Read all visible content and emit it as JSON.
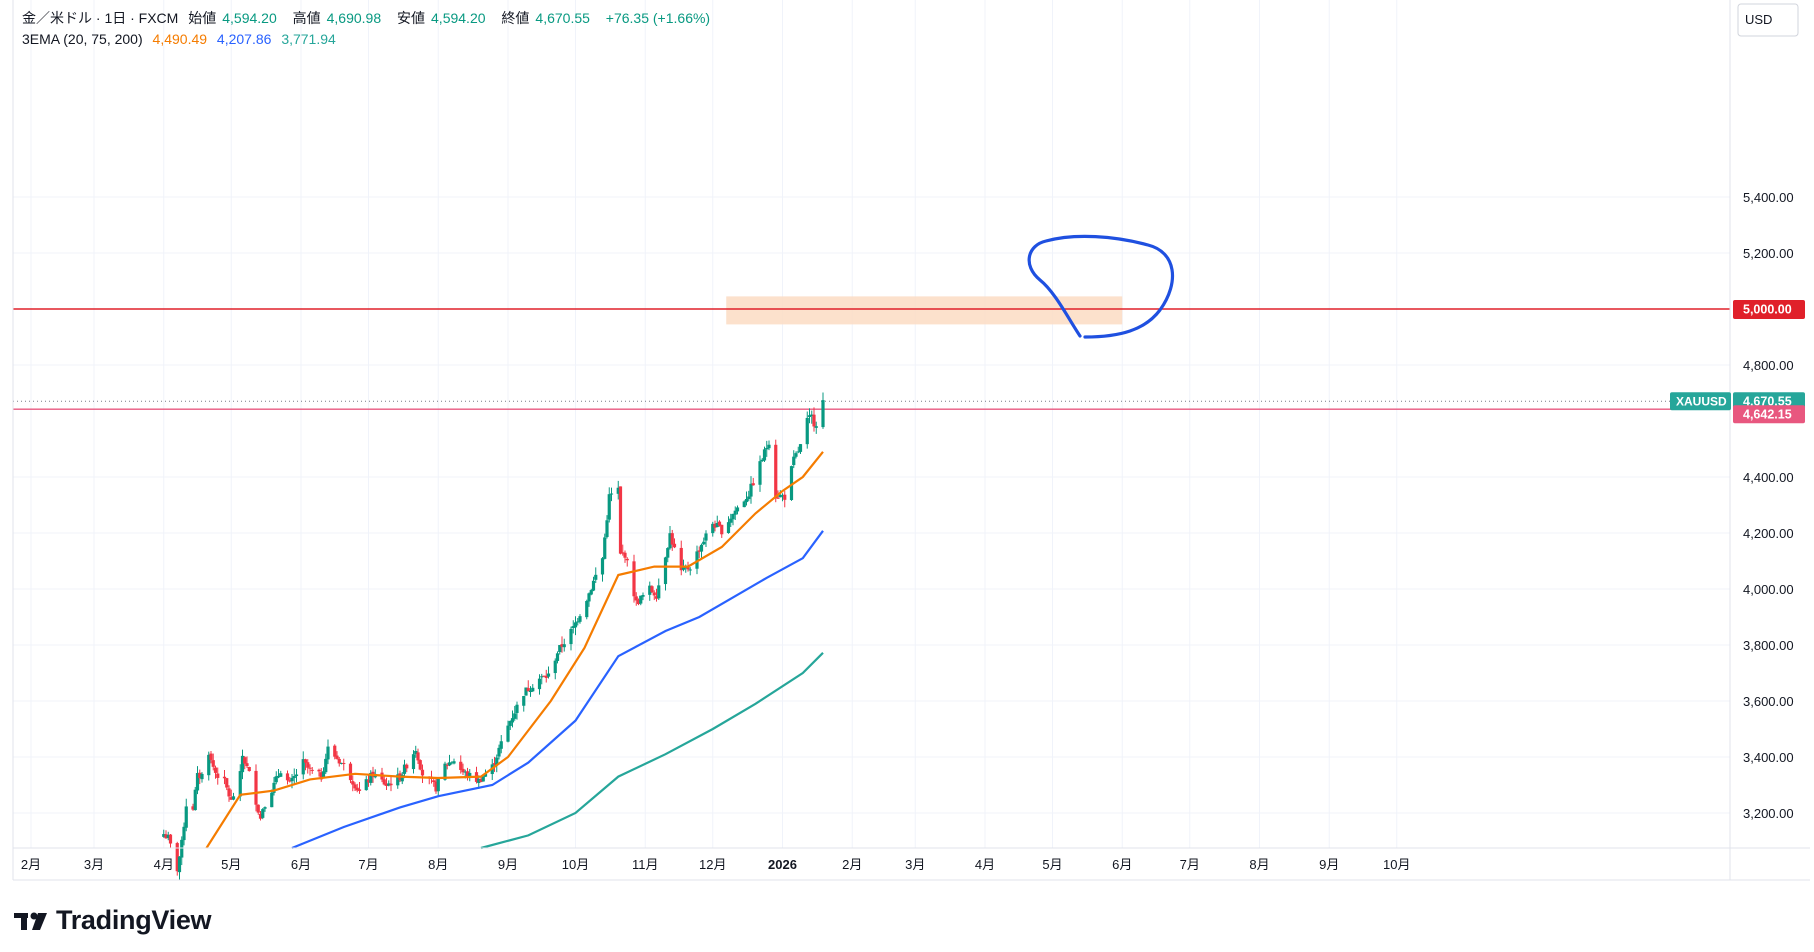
{
  "header": {
    "symbol": "金／米ドル · 1日 · FXCM",
    "open_label": "始値",
    "open": "4,594.20",
    "high_label": "高値",
    "high": "4,690.98",
    "low_label": "安値",
    "low": "4,594.20",
    "close_label": "終値",
    "close": "4,670.55",
    "change": "+76.35 (+1.66%)",
    "ema_label": "3EMA (20, 75, 200)",
    "ema_fast": "4,490.49",
    "ema_mid": "4,207.86",
    "ema_slow": "3,771.94"
  },
  "currency": "USD",
  "footer": {
    "brand": "TradingView"
  },
  "colors": {
    "up": "#089981",
    "down": "#f23645",
    "ema_fast": "#f57c00",
    "ema_mid": "#2962ff",
    "ema_slow": "#26a69a",
    "resistance": "#e0202a",
    "pink_line": "#e8577f",
    "zone": "#fcdcc3",
    "drawing": "#1f50e0",
    "badge_green": "#26a69a"
  },
  "chart_data": {
    "type": "candlestick",
    "y_ticks": [
      "3,200.00",
      "3,400.00",
      "3,600.00",
      "3,800.00",
      "4,000.00",
      "4,200.00",
      "4,400.00",
      "4,800.00",
      "5,000.00",
      "5,200.00",
      "5,400.00"
    ],
    "ylim": [
      3075,
      5650
    ],
    "x_ticks": [
      "2月",
      "3月",
      "4月",
      "5月",
      "6月",
      "7月",
      "8月",
      "9月",
      "10月",
      "11月",
      "12月",
      "2026",
      "2月",
      "3月",
      "4月",
      "5月",
      "6月",
      "7月",
      "8月",
      "9月",
      "10月"
    ],
    "price_labels": {
      "resistance": "5,000.00",
      "last_symbol": "XAUUSD",
      "last": "4,670.55",
      "pink": "4,642.15"
    },
    "levels": {
      "resistance": 5000,
      "last": 4670.55,
      "pink": 4642.15
    },
    "zone": {
      "top": 5045,
      "bottom": 4945,
      "from": "2025-12-07",
      "to": "2026-06-01"
    },
    "anchors": [
      [
        "2025-04-01",
        3125
      ],
      [
        "2025-04-03",
        3110
      ],
      [
        "2025-04-07",
        3000
      ],
      [
        "2025-04-09",
        3090
      ],
      [
        "2025-04-11",
        3230
      ],
      [
        "2025-04-14",
        3220
      ],
      [
        "2025-04-16",
        3330
      ],
      [
        "2025-04-18",
        3335
      ],
      [
        "2025-04-21",
        3420
      ],
      [
        "2025-04-22",
        3385
      ],
      [
        "2025-04-24",
        3345
      ],
      [
        "2025-04-28",
        3310
      ],
      [
        "2025-05-01",
        3240
      ],
      [
        "2025-05-05",
        3335
      ],
      [
        "2025-05-06",
        3405
      ],
      [
        "2025-05-09",
        3340
      ],
      [
        "2025-05-14",
        3180
      ],
      [
        "2025-05-15",
        3220
      ],
      [
        "2025-05-20",
        3300
      ],
      [
        "2025-05-23",
        3355
      ],
      [
        "2025-05-27",
        3300
      ],
      [
        "2025-06-02",
        3380
      ],
      [
        "2025-06-05",
        3350
      ],
      [
        "2025-06-10",
        3330
      ],
      [
        "2025-06-13",
        3430
      ],
      [
        "2025-06-20",
        3370
      ],
      [
        "2025-06-27",
        3275
      ],
      [
        "2025-07-03",
        3340
      ],
      [
        "2025-07-09",
        3300
      ],
      [
        "2025-07-15",
        3330
      ],
      [
        "2025-07-22",
        3430
      ],
      [
        "2025-07-25",
        3340
      ],
      [
        "2025-07-31",
        3290
      ],
      [
        "2025-08-04",
        3370
      ],
      [
        "2025-08-08",
        3390
      ],
      [
        "2025-08-12",
        3345
      ],
      [
        "2025-08-19",
        3315
      ],
      [
        "2025-08-25",
        3365
      ],
      [
        "2025-09-02",
        3530
      ],
      [
        "2025-09-08",
        3630
      ],
      [
        "2025-09-15",
        3680
      ],
      [
        "2025-09-19",
        3690
      ],
      [
        "2025-09-23",
        3775
      ],
      [
        "2025-09-30",
        3860
      ],
      [
        "2025-10-07",
        3985
      ],
      [
        "2025-10-13",
        4110
      ],
      [
        "2025-10-16",
        4330
      ],
      [
        "2025-10-20",
        4355
      ],
      [
        "2025-10-21",
        4120
      ],
      [
        "2025-10-23",
        4125
      ],
      [
        "2025-10-28",
        3950
      ],
      [
        "2025-11-03",
        4000
      ],
      [
        "2025-11-06",
        3980
      ],
      [
        "2025-11-12",
        4195
      ],
      [
        "2025-11-17",
        4060
      ],
      [
        "2025-11-21",
        4080
      ],
      [
        "2025-11-26",
        4160
      ],
      [
        "2025-12-01",
        4235
      ],
      [
        "2025-12-05",
        4210
      ],
      [
        "2025-12-11",
        4280
      ],
      [
        "2025-12-17",
        4340
      ],
      [
        "2025-12-22",
        4445
      ],
      [
        "2025-12-26",
        4530
      ],
      [
        "2025-12-29",
        4335
      ],
      [
        "2026-01-02",
        4330
      ],
      [
        "2026-01-06",
        4460
      ],
      [
        "2026-01-09",
        4510
      ],
      [
        "2026-01-12",
        4600
      ],
      [
        "2026-01-14",
        4615
      ],
      [
        "2026-01-15",
        4595
      ],
      [
        "2026-01-16",
        4594.2
      ],
      [
        "2026-01-19",
        4670.55
      ]
    ],
    "ema_fast_points": [
      [
        "2025-04-20",
        3075
      ],
      [
        "2025-05-05",
        3265
      ],
      [
        "2025-05-20",
        3280
      ],
      [
        "2025-06-05",
        3320
      ],
      [
        "2025-06-25",
        3340
      ],
      [
        "2025-07-15",
        3330
      ],
      [
        "2025-08-01",
        3325
      ],
      [
        "2025-08-20",
        3330
      ],
      [
        "2025-09-01",
        3400
      ],
      [
        "2025-09-20",
        3600
      ],
      [
        "2025-10-05",
        3790
      ],
      [
        "2025-10-20",
        4050
      ],
      [
        "2025-11-05",
        4080
      ],
      [
        "2025-11-20",
        4080
      ],
      [
        "2025-12-05",
        4150
      ],
      [
        "2025-12-20",
        4270
      ],
      [
        "2026-01-01",
        4350
      ],
      [
        "2026-01-10",
        4400
      ],
      [
        "2026-01-19",
        4490
      ]
    ],
    "ema_mid_points": [
      [
        "2025-05-28",
        3075
      ],
      [
        "2025-06-20",
        3150
      ],
      [
        "2025-07-15",
        3220
      ],
      [
        "2025-08-01",
        3260
      ],
      [
        "2025-08-25",
        3300
      ],
      [
        "2025-09-10",
        3380
      ],
      [
        "2025-10-01",
        3530
      ],
      [
        "2025-10-20",
        3760
      ],
      [
        "2025-11-10",
        3850
      ],
      [
        "2025-11-25",
        3900
      ],
      [
        "2025-12-10",
        3970
      ],
      [
        "2025-12-25",
        4040
      ],
      [
        "2026-01-10",
        4110
      ],
      [
        "2026-01-19",
        4208
      ]
    ],
    "ema_slow_points": [
      [
        "2025-08-20",
        3075
      ],
      [
        "2025-09-10",
        3120
      ],
      [
        "2025-10-01",
        3200
      ],
      [
        "2025-10-20",
        3330
      ],
      [
        "2025-11-10",
        3410
      ],
      [
        "2025-12-01",
        3500
      ],
      [
        "2025-12-20",
        3590
      ],
      [
        "2026-01-10",
        3700
      ],
      [
        "2026-01-19",
        3772
      ]
    ]
  }
}
